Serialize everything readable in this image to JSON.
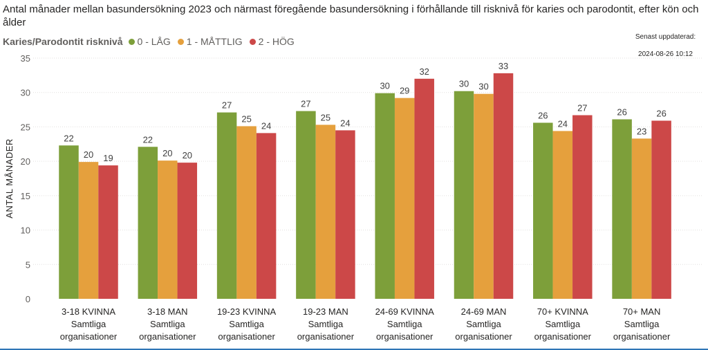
{
  "title": "Antal månader mellan basundersökning 2023 och närmast föregående basundersökning i förhållande till risknivå för karies och parodontit, efter kön och ålder",
  "updated": {
    "label": "Senast uppdaterad:",
    "value": "2024-08-26 10:12"
  },
  "legend": {
    "title": "Karies/Parodontit risknivå"
  },
  "chart_data": {
    "type": "bar",
    "title": "Antal månader mellan basundersökning 2023 och närmast föregående basundersökning i förhållande till risknivå för karies och parodontit, efter kön och ålder",
    "ylabel": "ANTAL MÅNADER",
    "xlabel": "",
    "ylim": [
      0,
      35
    ],
    "yticks": [
      0,
      5,
      10,
      15,
      20,
      25,
      30,
      35
    ],
    "grid": true,
    "legend_position": "top-left",
    "categories": [
      [
        "3-18 KVINNA",
        "Samtliga",
        "organisationer"
      ],
      [
        "3-18 MAN",
        "Samtliga",
        "organisationer"
      ],
      [
        "19-23 KVINNA",
        "Samtliga",
        "organisationer"
      ],
      [
        "19-23 MAN",
        "Samtliga",
        "organisationer"
      ],
      [
        "24-69 KVINNA",
        "Samtliga",
        "organisationer"
      ],
      [
        "24-69 MAN",
        "Samtliga",
        "organisationer"
      ],
      [
        "70+ KVINNA",
        "Samtliga",
        "organisationer"
      ],
      [
        "70+ MAN",
        "Samtliga",
        "organisationer"
      ]
    ],
    "series": [
      {
        "name": "0 - LÅG",
        "color": "#7d9f3a",
        "values": [
          22.3,
          22.1,
          27.1,
          27.3,
          29.9,
          30.2,
          25.6,
          26.1
        ],
        "labels": [
          "22",
          "22",
          "27",
          "27",
          "30",
          "30",
          "26",
          "26"
        ]
      },
      {
        "name": "1 - MÅTTLIG",
        "color": "#e5a03d",
        "values": [
          19.9,
          20.1,
          25.1,
          25.3,
          29.2,
          29.8,
          24.4,
          23.3
        ],
        "labels": [
          "20",
          "20",
          "25",
          "25",
          "29",
          "30",
          "24",
          "23"
        ]
      },
      {
        "name": "2 - HÖG",
        "color": "#cc4848",
        "values": [
          19.4,
          19.8,
          24.1,
          24.5,
          32.0,
          32.8,
          26.7,
          25.9
        ],
        "labels": [
          "19",
          "20",
          "24",
          "24",
          "32",
          "33",
          "27",
          "26"
        ]
      }
    ]
  }
}
